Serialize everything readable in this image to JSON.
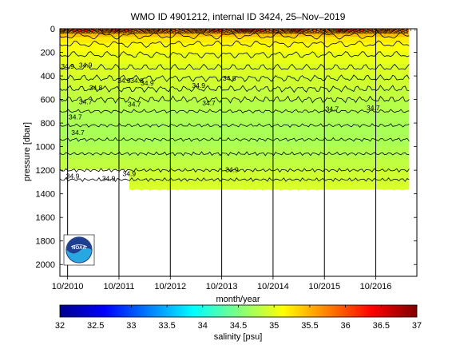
{
  "chart_data": {
    "type": "heatmap",
    "title": "WMO ID 4901212, internal ID 3424, 25–Nov–2019",
    "xlabel": "month/year",
    "ylabel": "pressure [dbar]",
    "x_ticks": [
      "10/2010",
      "10/2011",
      "10/2012",
      "10/2013",
      "10/2014",
      "10/2015",
      "10/2016"
    ],
    "y_ticks": [
      0,
      200,
      400,
      600,
      800,
      1000,
      1200,
      1400,
      1600,
      1800,
      2000
    ],
    "ylim": [
      2100,
      0
    ],
    "y_reversed": true,
    "data_max_pressure_approx": 1360,
    "salinity_profile": [
      {
        "pressure": 0,
        "salinity": 35.9
      },
      {
        "pressure": 30,
        "salinity": 35.6
      },
      {
        "pressure": 70,
        "salinity": 35.3
      },
      {
        "pressure": 120,
        "salinity": 35.15
      },
      {
        "pressure": 200,
        "salinity": 35.05
      },
      {
        "pressure": 300,
        "salinity": 34.98
      },
      {
        "pressure": 400,
        "salinity": 34.92
      },
      {
        "pressure": 500,
        "salinity": 34.86
      },
      {
        "pressure": 600,
        "salinity": 34.8
      },
      {
        "pressure": 700,
        "salinity": 34.74
      },
      {
        "pressure": 800,
        "salinity": 34.7
      },
      {
        "pressure": 900,
        "salinity": 34.7
      },
      {
        "pressure": 1000,
        "salinity": 34.72
      },
      {
        "pressure": 1100,
        "salinity": 34.78
      },
      {
        "pressure": 1200,
        "salinity": 34.86
      },
      {
        "pressure": 1300,
        "salinity": 34.92
      },
      {
        "pressure": 1360,
        "salinity": 34.95
      }
    ],
    "contour_pressures": [
      60,
      130,
      220,
      330,
      420,
      510,
      600,
      700,
      820,
      940,
      1060,
      1200,
      1280
    ],
    "contour_labels": [
      "34.9",
      "34.9",
      "34.9",
      "34.9",
      "34.9",
      "34.8",
      "34.8",
      "34.8",
      "34.7",
      "34.7",
      "34.7",
      "34.7",
      "34.7",
      "34.7",
      "34.7",
      "34.9",
      "34.9",
      "34.9",
      "34.9"
    ],
    "colorbar": {
      "label": "salinity [psu]",
      "range": [
        32,
        37
      ],
      "ticks": [
        "32",
        "32.5",
        "33",
        "33.5",
        "34",
        "34.5",
        "35",
        "35.5",
        "36",
        "36.5",
        "37"
      ],
      "colormap": "jet"
    },
    "grid": false,
    "logo": "NOAA"
  }
}
